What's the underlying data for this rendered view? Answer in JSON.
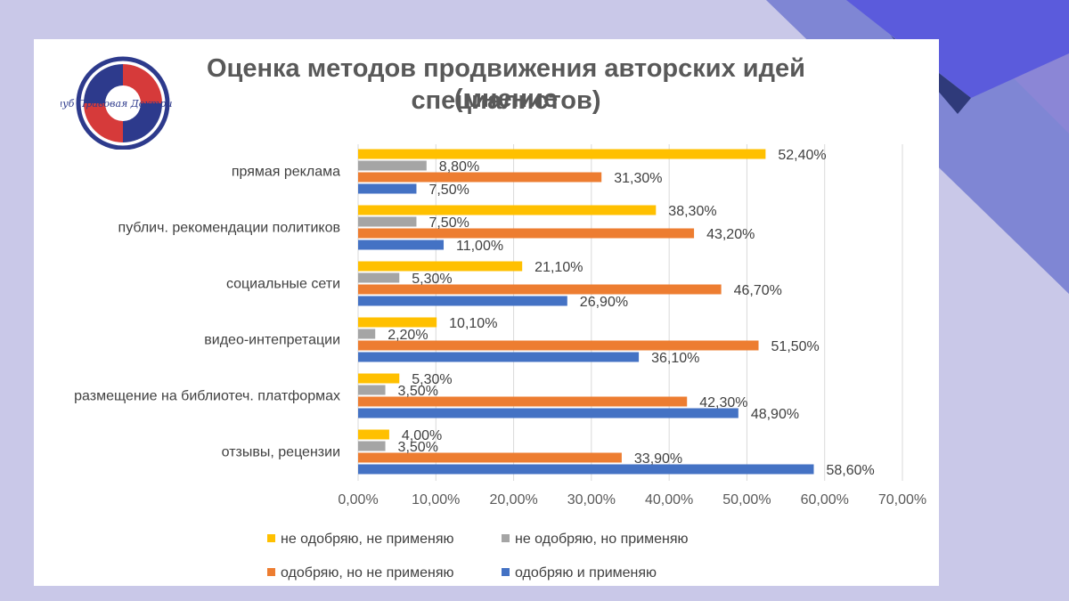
{
  "slide": {
    "colors": {
      "background": "#c9c8e8",
      "card": "#ffffff"
    }
  },
  "logo": {
    "text": "Клуб Правовая Доктрина"
  },
  "chart_data": {
    "type": "bar",
    "orientation": "horizontal",
    "title_line1": "Оценка  методов продвижения авторских идей (мнение",
    "title_line2": "специалистов)",
    "categories": [
      "прямая реклама",
      "публич. рекомендации политиков",
      "социальные сети",
      "видео-интепретации",
      "размещение на библиотеч. платформах",
      "отзывы, рецензии"
    ],
    "series": [
      {
        "name": "не одобряю, не применяю",
        "color": "#FFC000",
        "values": [
          52.4,
          38.3,
          21.1,
          10.1,
          5.3,
          4.0
        ],
        "labels": [
          "52,40%",
          "38,30%",
          "21,10%",
          "10,10%",
          "5,30%",
          "4,00%"
        ]
      },
      {
        "name": "не одобряю, но применяю",
        "color": "#A5A5A5",
        "values": [
          8.8,
          7.5,
          5.3,
          2.2,
          3.5,
          3.5
        ],
        "labels": [
          "8,80%",
          "7,50%",
          "5,30%",
          "2,20%",
          "3,50%",
          "3,50%"
        ]
      },
      {
        "name": "одобряю, но не  применяю",
        "color": "#ED7D31",
        "values": [
          31.3,
          43.2,
          46.7,
          51.5,
          42.3,
          33.9
        ],
        "labels": [
          "31,30%",
          "43,20%",
          "46,70%",
          "51,50%",
          "42,30%",
          "33,90%"
        ]
      },
      {
        "name": "одобряю и применяю",
        "color": "#4472C4",
        "values": [
          7.5,
          11.0,
          26.9,
          36.1,
          48.9,
          58.6
        ],
        "labels": [
          "7,50%",
          "11,00%",
          "26,90%",
          "36,10%",
          "48,90%",
          "58,60%"
        ]
      }
    ],
    "xlim": [
      0,
      70
    ],
    "xticks": [
      0,
      10,
      20,
      30,
      40,
      50,
      60,
      70
    ],
    "xtick_labels": [
      "0,00%",
      "10,00%",
      "20,00%",
      "30,00%",
      "40,00%",
      "50,00%",
      "60,00%",
      "70,00%"
    ],
    "grid": true,
    "legend_position": "bottom",
    "xlabel": "",
    "ylabel": ""
  }
}
